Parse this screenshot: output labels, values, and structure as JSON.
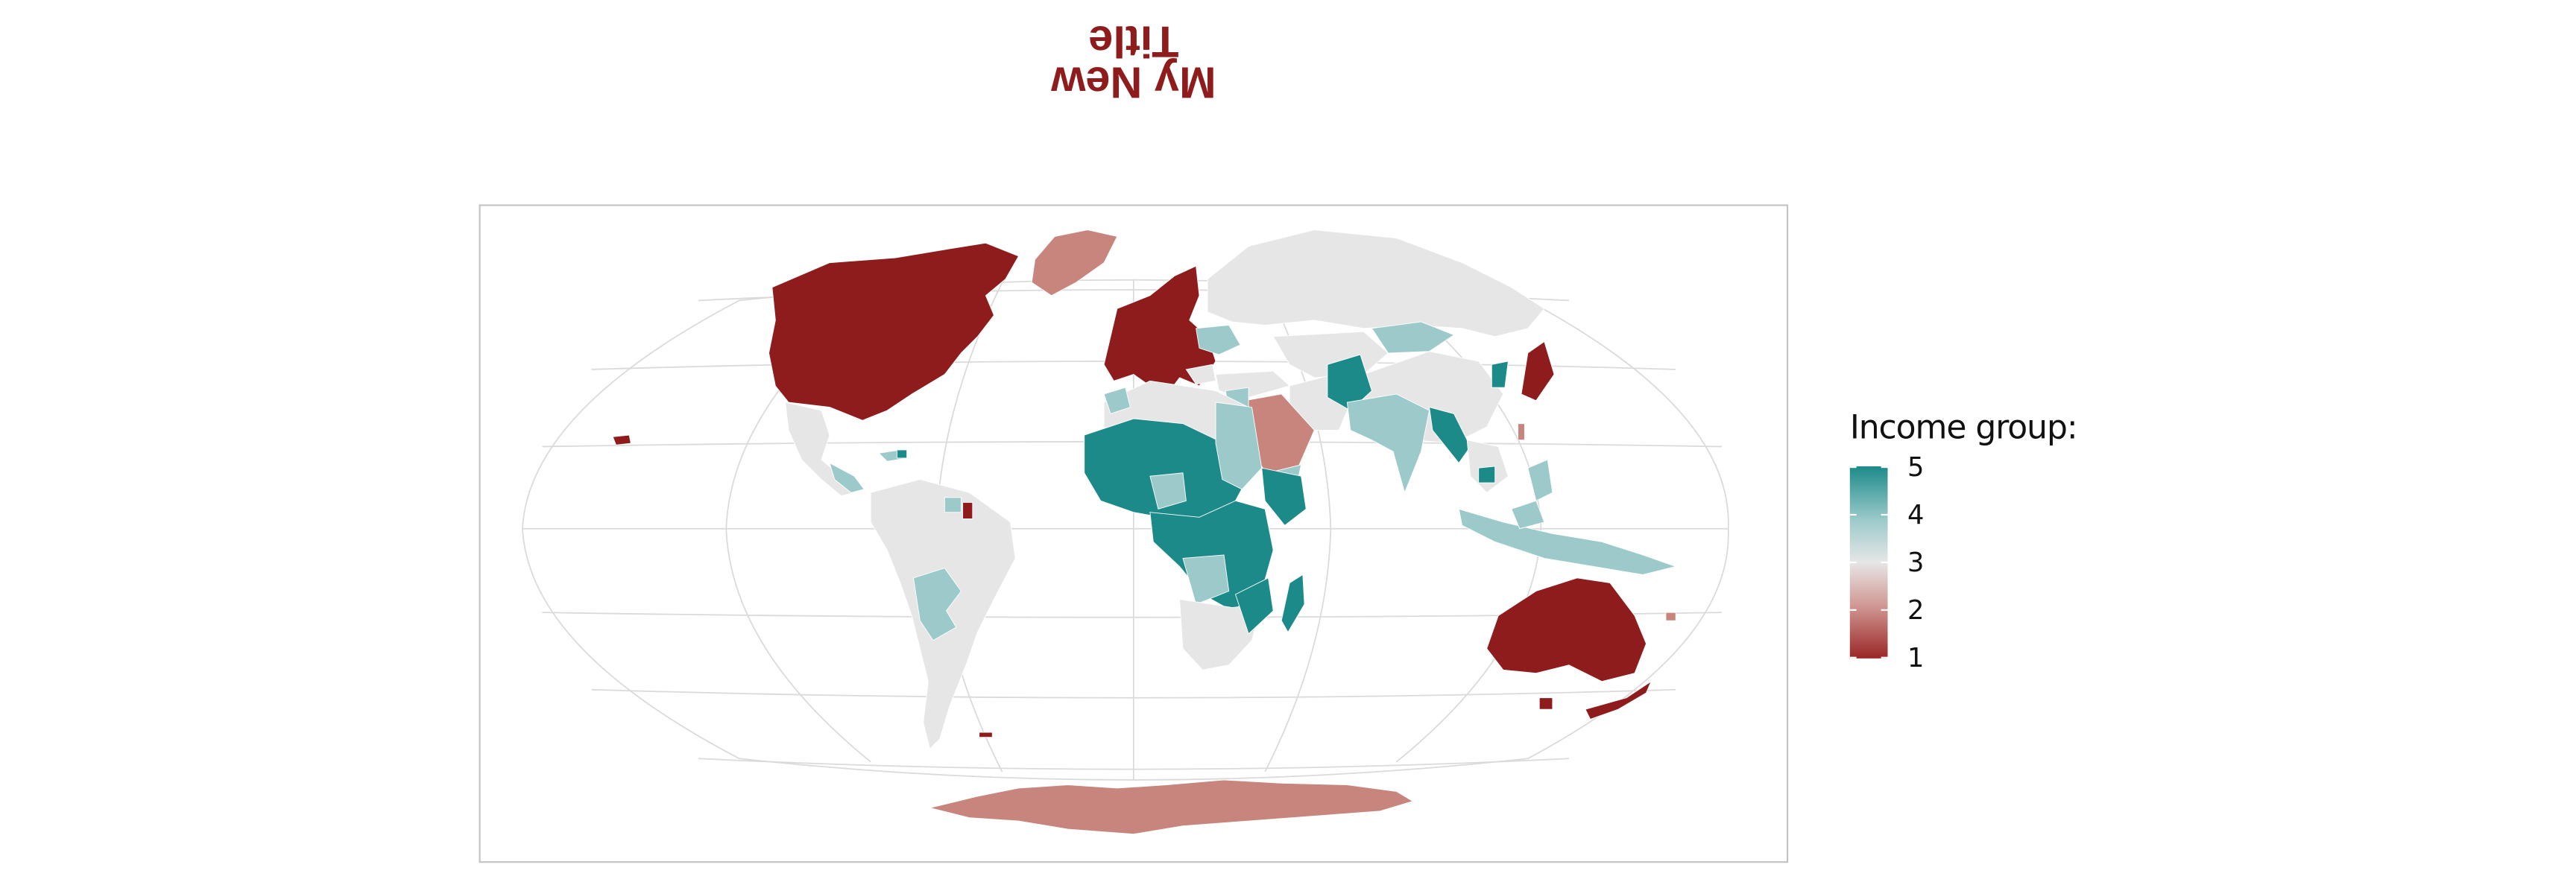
{
  "title": "My New\nTitle",
  "legend": {
    "title": "Income group:",
    "labels": [
      "5",
      "4",
      "3",
      "2",
      "1"
    ],
    "scale": [
      1,
      5
    ],
    "colors": {
      "low": "#9a2727",
      "mid_low": "#d19a95",
      "mid": "#e6e6e6",
      "mid_high": "#9ccaca",
      "high": "#1d8a8a"
    }
  },
  "map": {
    "projection": "winkel-tripel",
    "graticule": true,
    "title_orientation": "rotated-180",
    "regions": [
      {
        "name": "North America (US/Canada)",
        "group": 1
      },
      {
        "name": "Greenland",
        "group": 2
      },
      {
        "name": "Mexico/Central America",
        "group": 3
      },
      {
        "name": "South America",
        "group": 3
      },
      {
        "name": "Bolivia/Paraguay",
        "group": 4
      },
      {
        "name": "Western Europe",
        "group": 1
      },
      {
        "name": "Russia",
        "group": 3
      },
      {
        "name": "North Africa",
        "group": 3
      },
      {
        "name": "Saudi Arabia/Gulf",
        "group": 2
      },
      {
        "name": "Sahel/West Africa",
        "group": 5
      },
      {
        "name": "Central/East Africa",
        "group": 5
      },
      {
        "name": "Southern Africa",
        "group": 3
      },
      {
        "name": "Madagascar",
        "group": 5
      },
      {
        "name": "South Asia",
        "group": 4
      },
      {
        "name": "Afghanistan",
        "group": 5
      },
      {
        "name": "China",
        "group": 3
      },
      {
        "name": "Mongolia",
        "group": 4
      },
      {
        "name": "Myanmar/Southeast Asia",
        "group": 5
      },
      {
        "name": "Japan",
        "group": 1
      },
      {
        "name": "Indonesia/Philippines",
        "group": 4
      },
      {
        "name": "Australia",
        "group": 1
      },
      {
        "name": "New Zealand",
        "group": 1
      },
      {
        "name": "Antarctica",
        "group": 2
      }
    ]
  }
}
